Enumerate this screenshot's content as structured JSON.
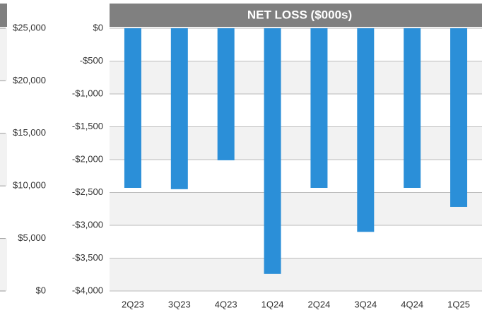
{
  "chart_data": [
    {
      "type": "bar",
      "ylim": [
        0,
        25000
      ],
      "yticks": [
        {
          "value": 0,
          "label": "$0"
        },
        {
          "value": 5000,
          "label": "$5,000"
        },
        {
          "value": 10000,
          "label": "$10,000"
        },
        {
          "value": 15000,
          "label": "$15,000"
        },
        {
          "value": 20000,
          "label": "$20,000"
        },
        {
          "value": 25000,
          "label": "$25,000"
        }
      ]
    },
    {
      "type": "bar",
      "title": "NET LOSS ($000s)",
      "categories": [
        "2Q23",
        "3Q23",
        "4Q23",
        "1Q24",
        "2Q24",
        "3Q24",
        "4Q24",
        "1Q25"
      ],
      "values": [
        -2430,
        -2450,
        -2010,
        -3740,
        -2430,
        -3100,
        -2430,
        -2720
      ],
      "color": "#2b8fd8",
      "ylim": [
        -4000,
        0
      ],
      "yticks": [
        {
          "value": -4000,
          "label": "-$4,000"
        },
        {
          "value": -3500,
          "label": "-$3,500"
        },
        {
          "value": -3000,
          "label": "-$3,000"
        },
        {
          "value": -2500,
          "label": "-$2,500"
        },
        {
          "value": -2000,
          "label": "-$2,000"
        },
        {
          "value": -1500,
          "label": "-$1,500"
        },
        {
          "value": -1000,
          "label": "-$1,000"
        },
        {
          "value": -500,
          "label": "-$500"
        },
        {
          "value": 0,
          "label": "$0"
        }
      ],
      "grid": true
    }
  ]
}
